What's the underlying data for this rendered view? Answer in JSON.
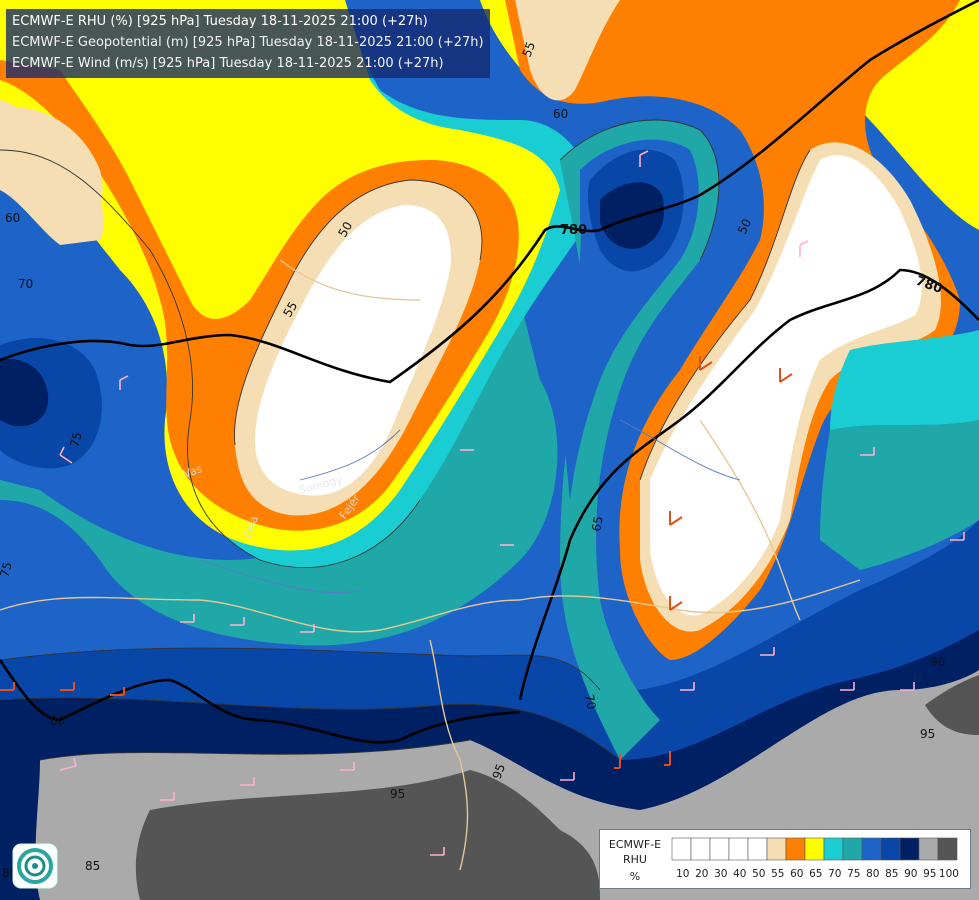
{
  "titles": {
    "line1": "ECMWF-E RHU (%) [925 hPa] Tuesday 18-11-2025 21:00 (+27h)",
    "line2": "ECMWF-E Geopotential (m) [925 hPa] Tuesday 18-11-2025 21:00 (+27h)",
    "line3": "ECMWF-E Wind (m/s) [925 hPa] Tuesday 18-11-2025 21:00 (+27h)"
  },
  "legend": {
    "model": "ECMWF-E",
    "variable": "RHU",
    "unit": "%",
    "levels": [
      "10",
      "20",
      "30",
      "40",
      "50",
      "55",
      "60",
      "65",
      "70",
      "75",
      "80",
      "85",
      "90",
      "95",
      "100"
    ],
    "colors": [
      "#ffffff",
      "#ffffff",
      "#ffffff",
      "#ffffff",
      "#ffffff",
      "#f5deb3",
      "#ff8000",
      "#ffff00",
      "#19cdd2",
      "#20a8a8",
      "#1e64c8",
      "#0846a8",
      "#002064",
      "#aaaaaa",
      "#555555"
    ]
  },
  "contour_labels": {
    "rh": [
      "55",
      "60",
      "50",
      "55",
      "50",
      "60",
      "70",
      "75",
      "75",
      "65",
      "70",
      "80",
      "85",
      "90",
      "95",
      "95",
      "95",
      "85"
    ],
    "geopotential": [
      "780",
      "780"
    ]
  },
  "place_labels": [
    "Zala",
    "Somogy",
    "Fejér",
    "Vas"
  ],
  "icons": {
    "logo": "meteo-swirl-logo"
  }
}
